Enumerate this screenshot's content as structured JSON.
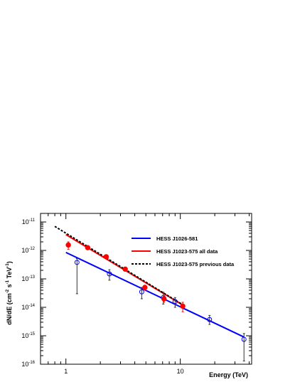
{
  "chart_data": {
    "type": "scatter",
    "xlabel": "Energy (TeV)",
    "ylabel": {
      "base": "dN/dE (cm",
      "e1": "-2",
      "mid1": " s",
      "e2": "-1",
      "mid2": " TeV",
      "e3": "-1",
      "end": ")"
    },
    "x_scale": "log",
    "y_scale": "log",
    "xlim": [
      0.6,
      42
    ],
    "ylim": [
      1e-16,
      2e-11
    ],
    "x_ticks": [
      {
        "value": 1,
        "label": "1"
      },
      {
        "value": 10,
        "label": "10"
      }
    ],
    "y_ticks": [
      {
        "value": 1e-16,
        "base": "10",
        "exp": "-16"
      },
      {
        "value": 1e-15,
        "base": "10",
        "exp": "-15"
      },
      {
        "value": 1e-14,
        "base": "10",
        "exp": "-14"
      },
      {
        "value": 1e-13,
        "base": "10",
        "exp": "-13"
      },
      {
        "value": 1e-12,
        "base": "10",
        "exp": "-12"
      },
      {
        "value": 1e-11,
        "base": "10",
        "exp": "-11"
      }
    ],
    "grid": false,
    "legend_position": "top-right",
    "series": [
      {
        "name": "HESS J1026-581",
        "kind": "fit",
        "color": "#0000ff",
        "dash": "none",
        "line": [
          [
            1.0,
            8.5e-13
          ],
          [
            36,
            9e-16
          ]
        ],
        "points": [
          {
            "x": 1.25,
            "y": 3.8e-13,
            "ylo": 3e-14,
            "yhi": 5.2e-13
          },
          {
            "x": 2.4,
            "y": 1.5e-13,
            "ylo": 9e-14,
            "yhi": 2.1e-13
          },
          {
            "x": 4.6,
            "y": 3.5e-14,
            "ylo": 2e-14,
            "yhi": 5e-14
          },
          {
            "x": 7.1,
            "y": 2.2e-14,
            "ylo": 1.3e-14,
            "yhi": 3.4e-14
          },
          {
            "x": 9.0,
            "y": 1.6e-14,
            "ylo": 1e-14,
            "yhi": 2.2e-14
          },
          {
            "x": 18,
            "y": 3.7e-15,
            "ylo": 2.5e-15,
            "yhi": 5.2e-15
          },
          {
            "x": 36,
            "y": 7.5e-16,
            "ylo": 1.3e-16,
            "yhi": 1.2e-15
          }
        ]
      },
      {
        "name": "HESS J1023-575 all data",
        "kind": "fit",
        "color": "#ff0000",
        "dash": "none",
        "line": [
          [
            1.0,
            3.6e-12
          ],
          [
            10.5,
            1.2e-14
          ]
        ],
        "points": [
          {
            "x": 1.05,
            "y": 1.55e-12,
            "ylo": 1.1e-12,
            "yhi": 2e-12
          },
          {
            "x": 1.55,
            "y": 1.25e-12,
            "ylo": 1.1e-12,
            "yhi": 1.4e-12
          },
          {
            "x": 2.25,
            "y": 6e-13,
            "ylo": 5.2e-13,
            "yhi": 6.8e-13
          },
          {
            "x": 3.3,
            "y": 2.2e-13,
            "ylo": 1.9e-13,
            "yhi": 2.5e-13
          },
          {
            "x": 4.9,
            "y": 5e-14,
            "ylo": 4e-14,
            "yhi": 6e-14
          },
          {
            "x": 7.2,
            "y": 2e-14,
            "ylo": 1.5e-14,
            "yhi": 2.6e-14
          },
          {
            "x": 10.5,
            "y": 1.1e-14,
            "ylo": 7e-15,
            "yhi": 1.5e-14
          }
        ]
      },
      {
        "name": "HESS J1023-575 previous data",
        "kind": "fit",
        "color": "#000000",
        "dash": "3,2",
        "line": [
          [
            0.8,
            7e-12
          ],
          [
            11,
            1.1e-14
          ]
        ],
        "points": []
      }
    ]
  }
}
